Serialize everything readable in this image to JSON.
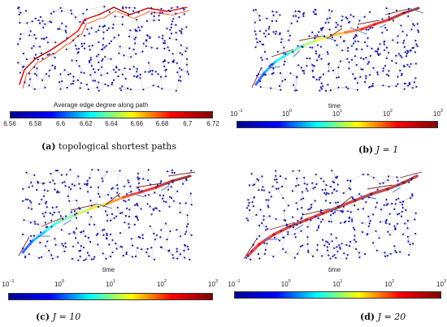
{
  "panels": [
    {
      "id": "a",
      "letter": "(a)",
      "caption_rest": "topological shortest paths",
      "colorbar_title": "Average edge degree along path",
      "colorbar_ticks": [
        "6.56",
        "6.58",
        "6.6",
        "6.62",
        "6.64",
        "6.66",
        "6.68",
        "6.7",
        "6.72"
      ],
      "colorbar_log": false,
      "path_color_range": [
        6.56,
        6.72
      ]
    },
    {
      "id": "b",
      "letter": "(b)",
      "caption_eq": "J = 1",
      "colorbar_title": "time",
      "colorbar_ticks": [
        "10",
        "10",
        "10",
        "10",
        "10"
      ],
      "colorbar_exponents": [
        "−1",
        "0",
        "1",
        "2",
        "3"
      ],
      "colorbar_log": true
    },
    {
      "id": "c",
      "letter": "(c)",
      "caption_eq": "J = 10",
      "colorbar_title": "time",
      "colorbar_ticks": [
        "10",
        "10",
        "10",
        "10",
        "10"
      ],
      "colorbar_exponents": [
        "−1",
        "0",
        "1",
        "2",
        "3"
      ],
      "colorbar_log": true
    },
    {
      "id": "d",
      "letter": "(d)",
      "caption_eq": "J = 20",
      "colorbar_title": "time",
      "colorbar_ticks": [
        "10",
        "10",
        "10",
        "10",
        "10"
      ],
      "colorbar_exponents": [
        "−1",
        "0",
        "1",
        "2",
        "3"
      ],
      "colorbar_log": true
    }
  ],
  "colors": {
    "node": "#1a1aa6",
    "edge": "#c8c8c8",
    "jet": [
      "#00008f",
      "#0000ff",
      "#00ffff",
      "#ffff00",
      "#ff0000",
      "#800000"
    ]
  }
}
